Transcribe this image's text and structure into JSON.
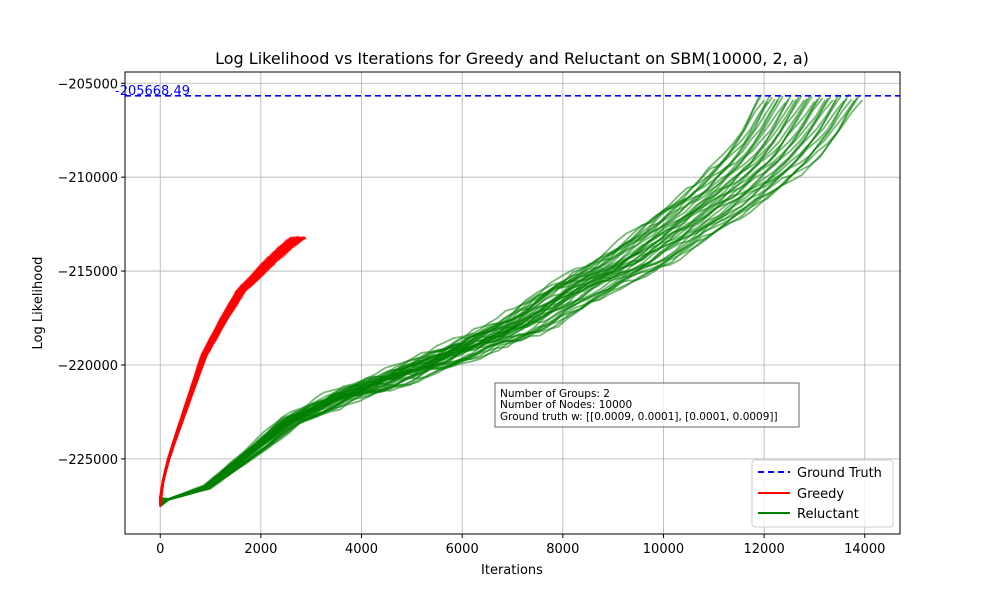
{
  "chart_data": {
    "type": "line",
    "title": "Log Likelihood vs Iterations for Greedy and Reluctant on SBM(10000, 2, a)",
    "xlabel": "Iterations",
    "ylabel": "Log Likelihood",
    "xlim": [
      -700,
      14700
    ],
    "ylim": [
      -229000,
      -204400
    ],
    "x_ticks": [
      0,
      2000,
      4000,
      6000,
      8000,
      10000,
      12000,
      14000
    ],
    "x_tick_labels": [
      "0",
      "2000",
      "4000",
      "6000",
      "8000",
      "10000",
      "12000",
      "14000"
    ],
    "y_ticks": [
      -225000,
      -220000,
      -215000,
      -210000,
      -205000
    ],
    "y_tick_labels": [
      "−225000",
      "−220000",
      "−215000",
      "−210000",
      "−205000"
    ],
    "grid": true,
    "legend_position": "lower-right",
    "ground_truth": {
      "value": -205668.49,
      "label": "-205668.49",
      "color": "#0000ff",
      "style": "dashed"
    },
    "series": [
      {
        "name": "Ground Truth",
        "color": "#0000ff",
        "style": "dashed"
      },
      {
        "name": "Greedy",
        "color": "#ff0000",
        "points": [
          [
            0,
            -227300
          ],
          [
            50,
            -226300
          ],
          [
            150,
            -225200
          ],
          [
            300,
            -224000
          ],
          [
            500,
            -222500
          ],
          [
            900,
            -219500
          ],
          [
            1300,
            -217600
          ],
          [
            1650,
            -216100
          ],
          [
            2000,
            -215200
          ],
          [
            2300,
            -214400
          ],
          [
            2600,
            -213700
          ],
          [
            2850,
            -213200
          ]
        ],
        "end_x_range": [
          2600,
          2900
        ]
      },
      {
        "name": "Reluctant",
        "color": "#008000",
        "points": [
          [
            0,
            -227300
          ],
          [
            900,
            -226500
          ],
          [
            1600,
            -225000
          ],
          [
            2500,
            -223000
          ],
          [
            3500,
            -221700
          ],
          [
            4500,
            -220700
          ],
          [
            6000,
            -219000
          ],
          [
            7000,
            -217800
          ],
          [
            8000,
            -216000
          ],
          [
            9000,
            -214600
          ],
          [
            10000,
            -212700
          ],
          [
            11000,
            -210700
          ],
          [
            11700,
            -209000
          ],
          [
            12100,
            -207600
          ],
          [
            12500,
            -205800
          ]
        ],
        "end_x_range": [
          11900,
          13950
        ]
      }
    ],
    "annotation": [
      "Number of Groups: 2",
      "Number of Nodes: 10000",
      "Ground truth w: [[0.0009, 0.0001], [0.0001, 0.0009]]"
    ]
  }
}
